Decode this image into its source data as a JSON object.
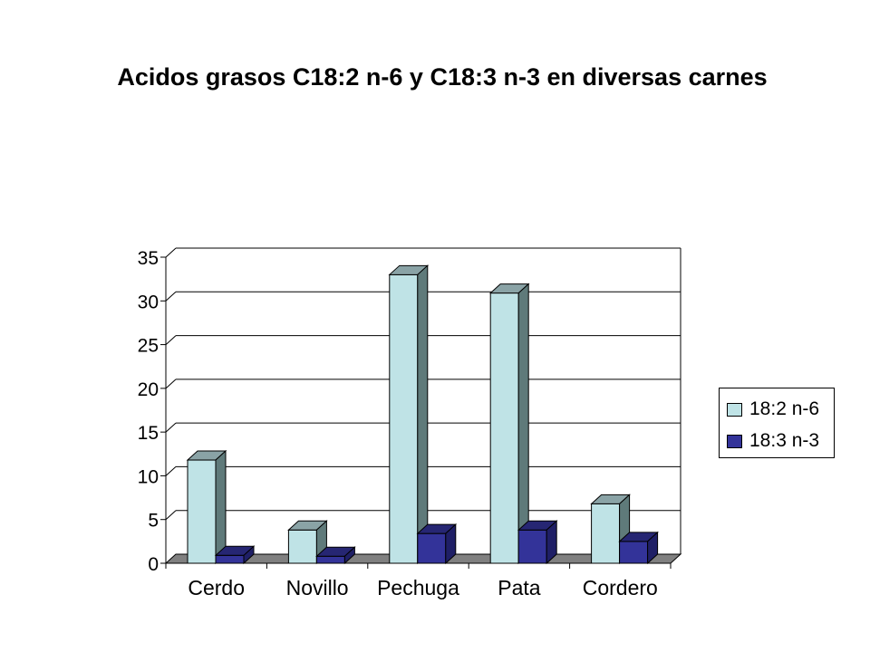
{
  "title": "Acidos grasos C18:2 n-6 y C18:3 n-3 en diversas carnes",
  "chart_data": {
    "type": "bar",
    "title": "Acidos grasos C18:2 n-6 y C18:3 n-3 en diversas carnes",
    "categories": [
      "Cerdo",
      "Novillo",
      "Pechuga",
      "Pata",
      "Cordero"
    ],
    "series": [
      {
        "name": "18:2 n-6",
        "values": [
          11.8,
          3.8,
          33.0,
          30.9,
          6.8
        ],
        "color": "#bfe3e6"
      },
      {
        "name": "18:3 n-3",
        "values": [
          0.9,
          0.8,
          3.4,
          3.8,
          2.5
        ],
        "color": "#333399"
      }
    ],
    "ylim": [
      0,
      35
    ],
    "yticks": [
      "0",
      "5",
      "10",
      "15",
      "20",
      "25",
      "30",
      "35"
    ],
    "grid": true,
    "legend_position": "right",
    "floor_color": "#808080"
  }
}
